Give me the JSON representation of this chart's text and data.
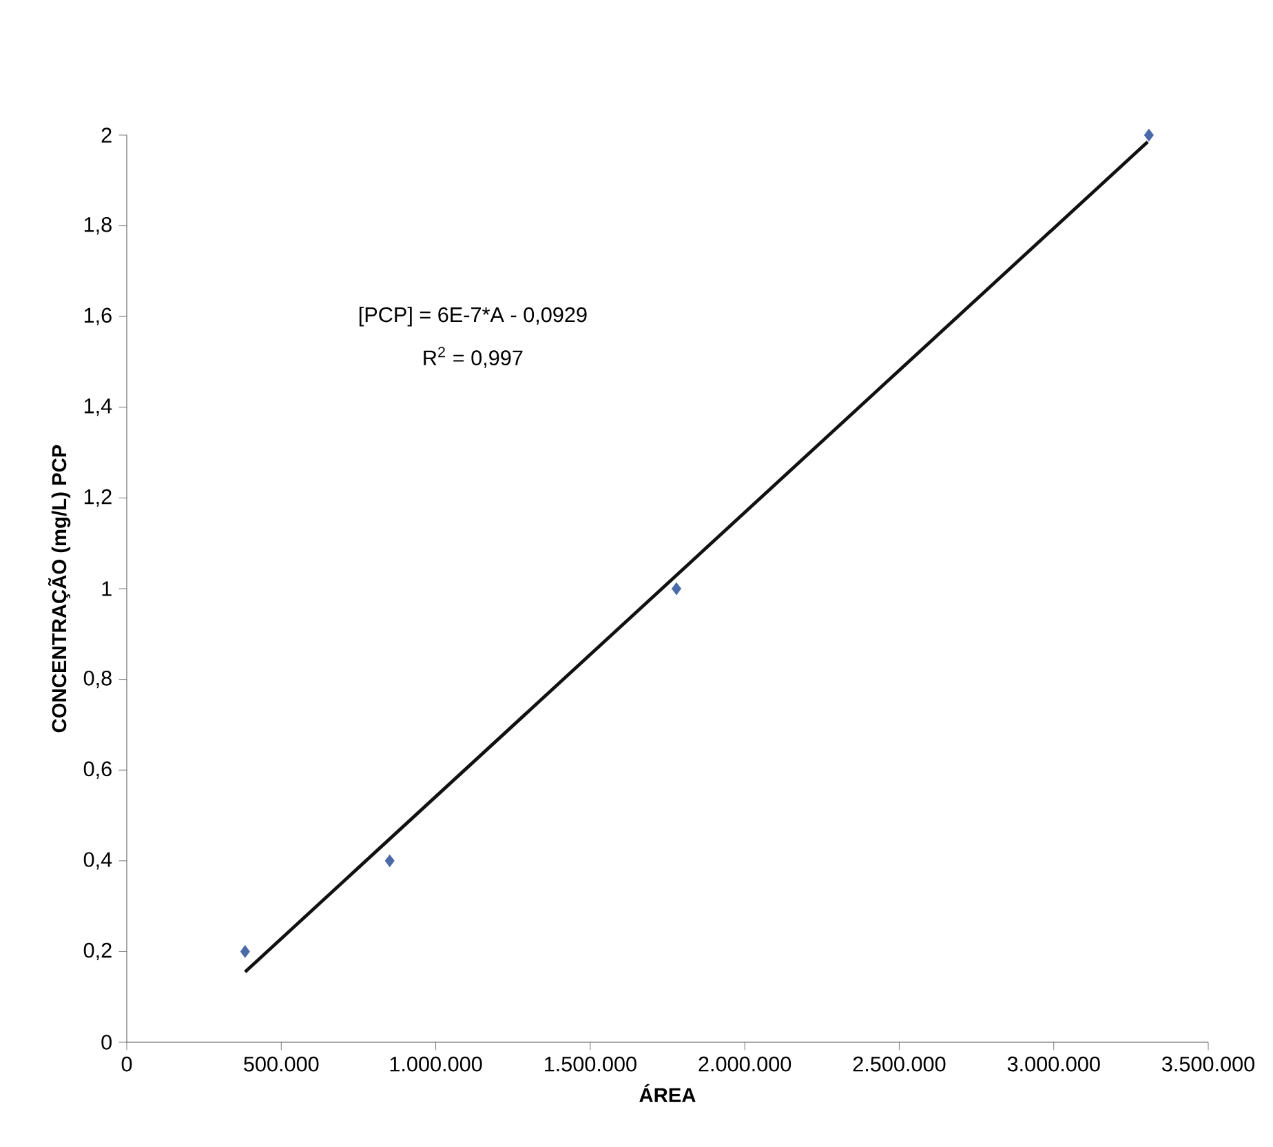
{
  "chart_data": {
    "type": "scatter",
    "xlabel": "ÁREA",
    "ylabel": "CONCENTRAÇÃO (mg/L) PCP",
    "xlim": [
      0,
      3500000
    ],
    "ylim": [
      0,
      2
    ],
    "xticks": [
      0,
      {
        "value": 500000,
        "label": "500.000"
      },
      {
        "value": 1000000,
        "label": "1.000.000"
      },
      {
        "value": 1500000,
        "label": "1.500.000"
      },
      {
        "value": 2000000,
        "label": "2.000.000"
      },
      {
        "value": 2500000,
        "label": "2.500.000"
      },
      {
        "value": 3000000,
        "label": "3.000.000"
      },
      {
        "value": 3500000,
        "label": "3.500.000"
      }
    ],
    "yticks": [
      0,
      {
        "value": 0.2,
        "label": "0,2"
      },
      {
        "value": 0.4,
        "label": "0,4"
      },
      {
        "value": 0.6,
        "label": "0,6"
      },
      {
        "value": 0.8,
        "label": "0,8"
      },
      1,
      {
        "value": 1.2,
        "label": "1,2"
      },
      {
        "value": 1.4,
        "label": "1,4"
      },
      {
        "value": 1.6,
        "label": "1,6"
      },
      {
        "value": 1.8,
        "label": "1,8"
      },
      2
    ],
    "series": [
      {
        "color": "#4a6aa8",
        "marker": "diamond",
        "x": [
          383000,
          851000,
          1779000,
          3308000
        ],
        "values": [
          0.2,
          0.4,
          1.0,
          2.0
        ]
      },
      {
        "type": "line",
        "color": "#111111",
        "marker": "none",
        "line_style": "solid",
        "x": [
          383000,
          3304000
        ],
        "values": [
          0.155,
          1.985
        ]
      }
    ],
    "annotations": [
      "[PCP] = 6E-7*A - 0,0929",
      "R$^{2}$ = 0,997"
    ]
  }
}
